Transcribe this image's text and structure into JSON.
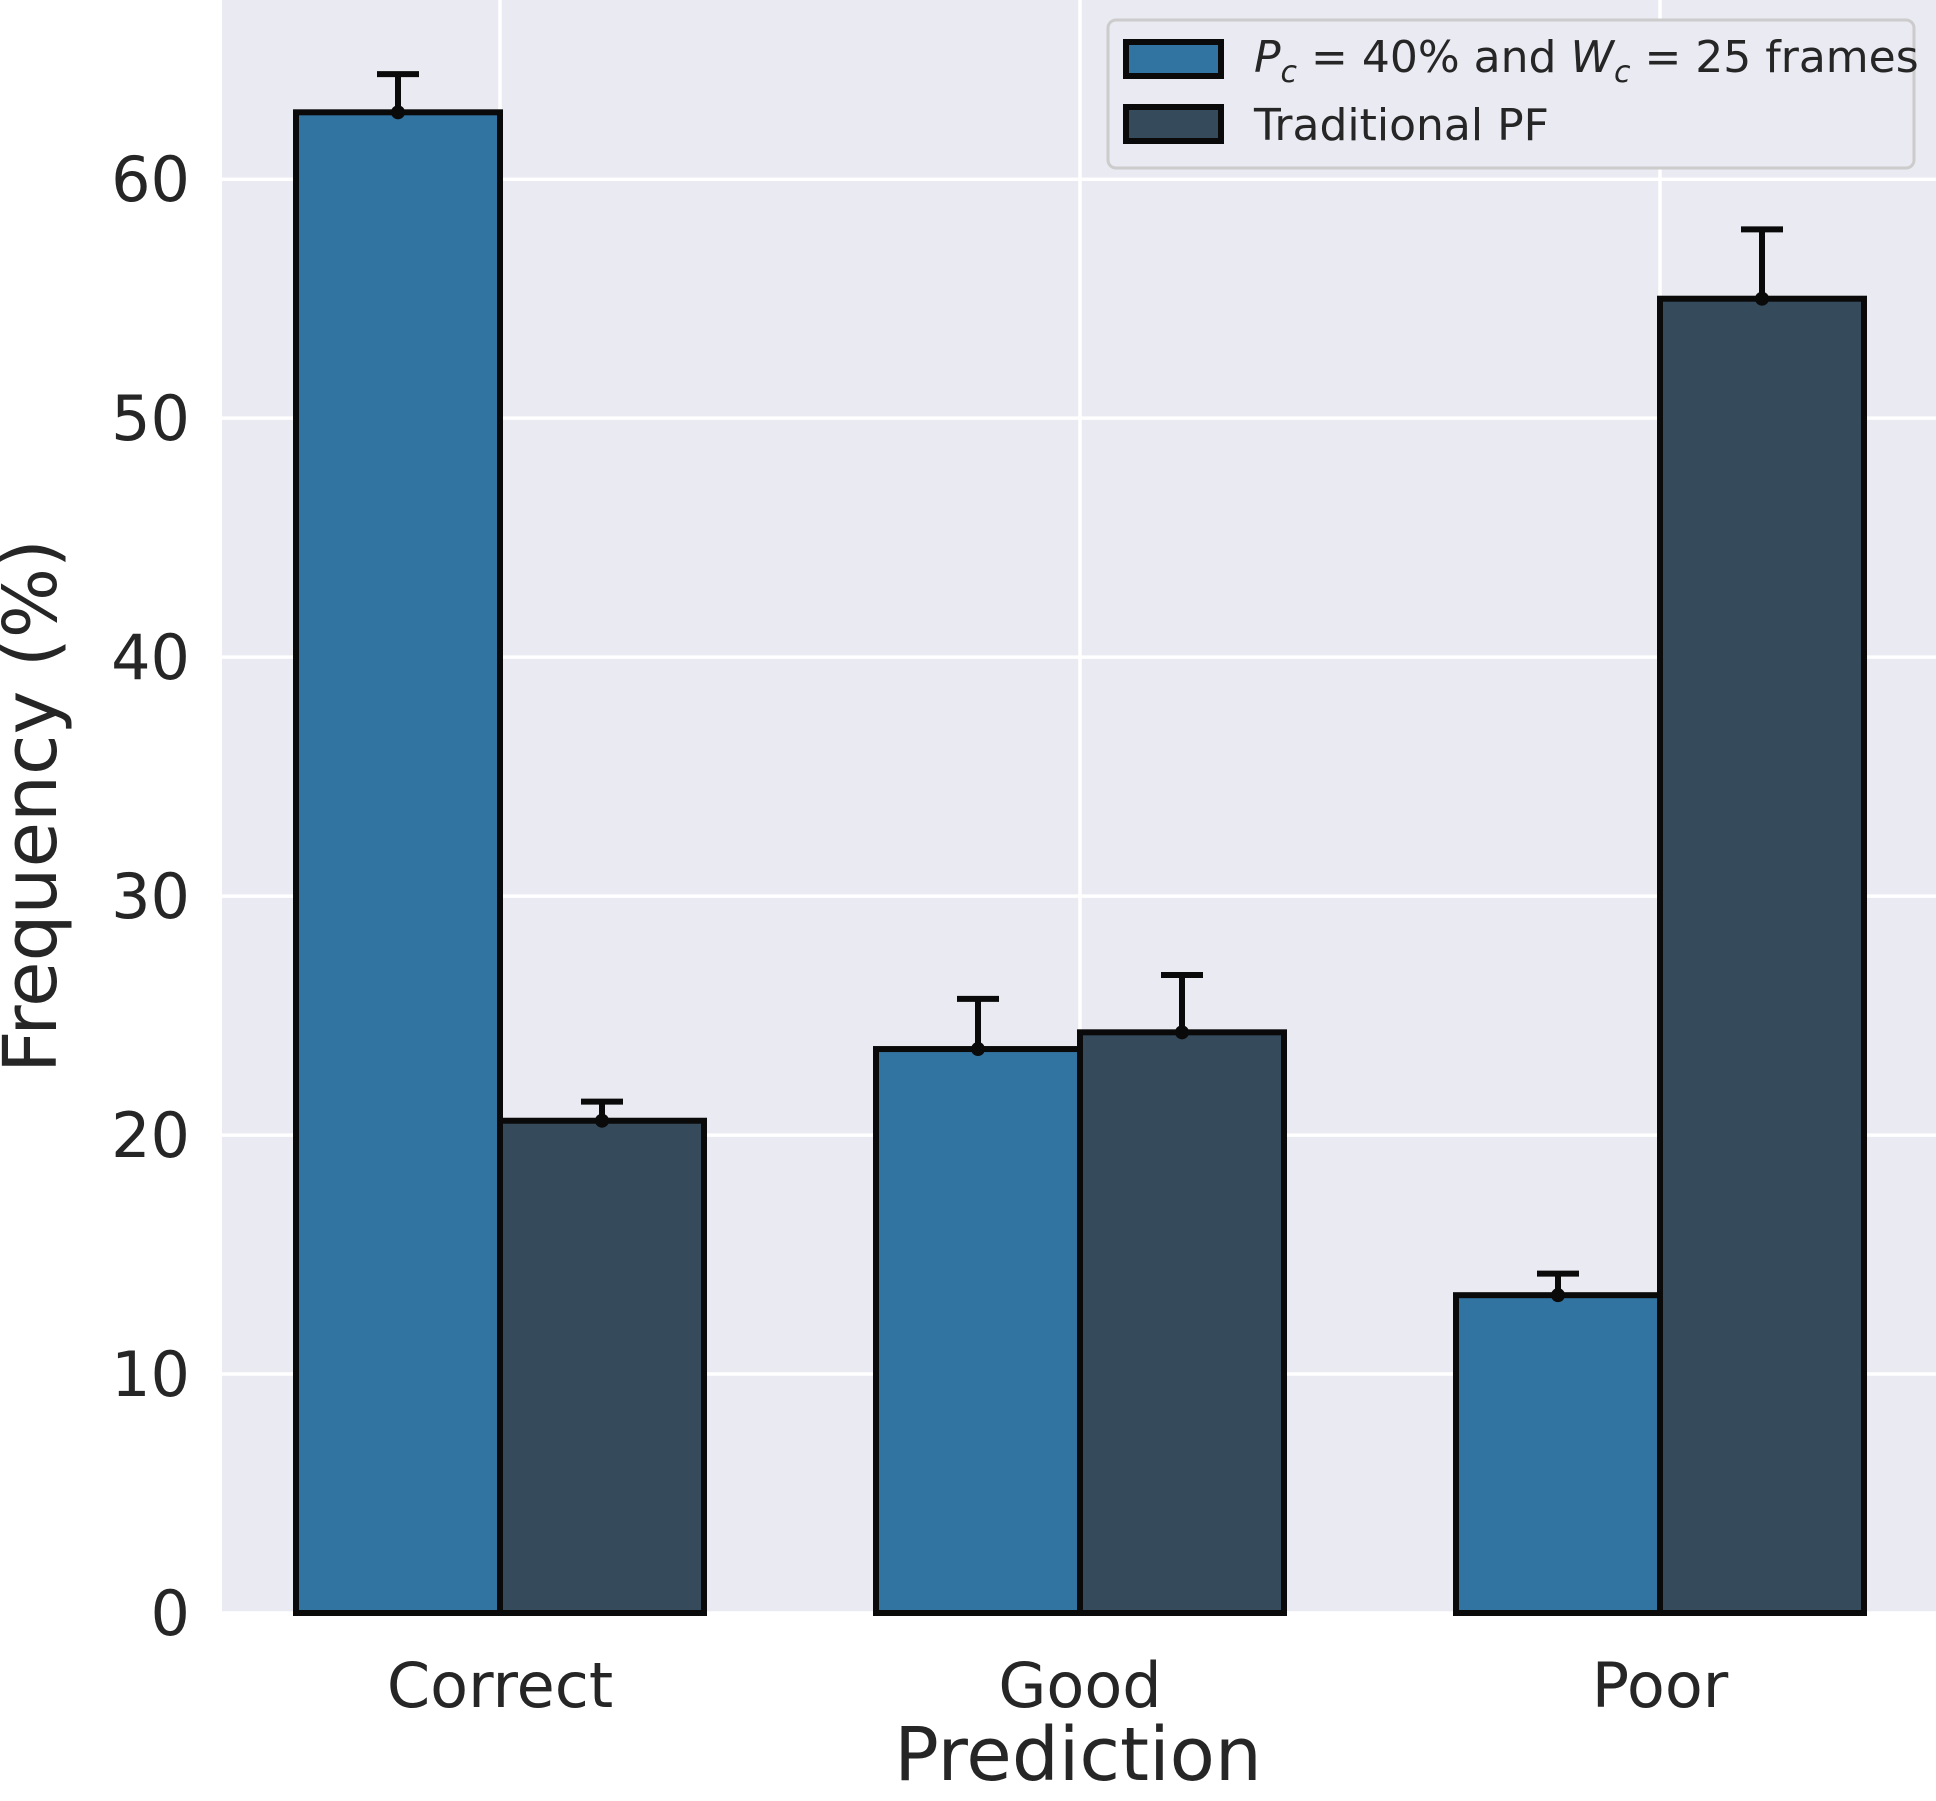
{
  "chart_data": {
    "type": "bar",
    "xlabel": "Prediction",
    "ylabel": "Frequency (%)",
    "ylim": [
      0,
      67.5
    ],
    "yticks": [
      0,
      10,
      20,
      30,
      40,
      50,
      60
    ],
    "grid": true,
    "legend_position": "top-right",
    "categories": [
      "Correct",
      "Good",
      "Poor"
    ],
    "series": [
      {
        "name": "P_c = 40% and W_c = 25 frames",
        "legend_parts": {
          "p_symbol": "P",
          "p_sub": "c",
          "p_rest": " = 40% and ",
          "w_symbol": "W",
          "w_sub": "c",
          "w_rest": " = 25 frames"
        },
        "color": "#3274a1",
        "values": [
          62.8,
          23.6,
          13.3
        ],
        "error_upper": [
          1.6,
          2.1,
          0.9
        ]
      },
      {
        "name": "Traditional PF",
        "color": "#354a5a",
        "values": [
          20.6,
          24.3,
          55.0
        ],
        "error_upper": [
          0.8,
          2.4,
          2.9
        ]
      }
    ],
    "colors": {
      "plot_background": "#eaeaf2",
      "grid": "#ffffff",
      "bar_edge": "#0a0a0a",
      "text": "#262626"
    }
  }
}
